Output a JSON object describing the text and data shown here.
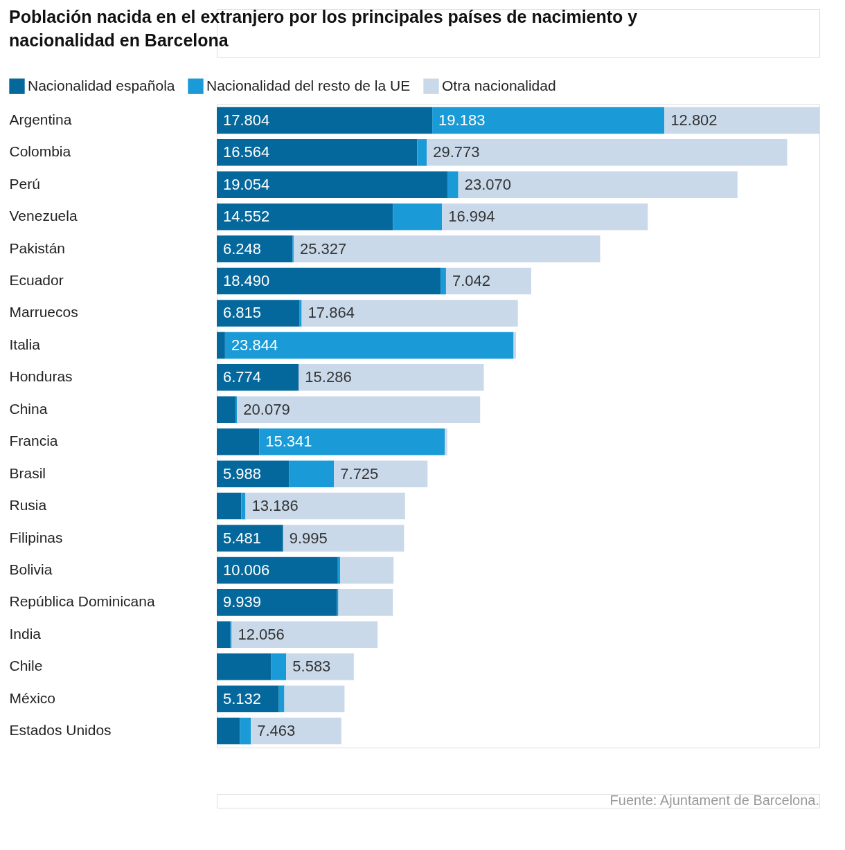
{
  "chart_data": {
    "type": "bar",
    "orientation": "horizontal",
    "stacked": true,
    "title": "Población nacida en el extranjero por los principales países de nacimiento y nacionalidad en Barcelona",
    "categories": [
      "Argentina",
      "Colombia",
      "Perú",
      "Venezuela",
      "Pakistán",
      "Ecuador",
      "Marruecos",
      "Italia",
      "Honduras",
      "China",
      "Francia",
      "Brasil",
      "Rusia",
      "Filipinas",
      "Bolivia",
      "República Dominicana",
      "India",
      "Chile",
      "México",
      "Estados Unidos"
    ],
    "series": [
      {
        "name": "Nacionalidad española",
        "color": "#05689c",
        "values": [
          17804,
          16564,
          19054,
          14552,
          6248,
          18490,
          6815,
          680,
          6774,
          1580,
          3500,
          5988,
          2030,
          5481,
          10006,
          9939,
          1130,
          4500,
          5132,
          1920
        ],
        "value_labels": [
          "17.804",
          "16.564",
          "19.054",
          "14.552",
          "6.248",
          "18.490",
          "6.815",
          null,
          "6.774",
          null,
          null,
          "5.988",
          null,
          "5.481",
          "10.006",
          "9.939",
          null,
          null,
          "5.132",
          null
        ]
      },
      {
        "name": "Nacionalidad del resto de la UE",
        "color": "#1a9ad6",
        "values": [
          19183,
          790,
          900,
          4064,
          100,
          450,
          200,
          23844,
          0,
          100,
          15341,
          3700,
          340,
          0,
          200,
          110,
          100,
          1240,
          450,
          900
        ],
        "value_labels": [
          "19.183",
          null,
          null,
          null,
          null,
          null,
          null,
          "23.844",
          null,
          null,
          "15.341",
          null,
          null,
          null,
          null,
          null,
          null,
          null,
          null,
          null
        ]
      },
      {
        "name": "Otra nacionalidad",
        "color": "#c9d9ea",
        "values": [
          12802,
          29773,
          23070,
          16994,
          25327,
          7042,
          17864,
          200,
          15286,
          20079,
          200,
          7725,
          13186,
          9995,
          4400,
          4500,
          12056,
          5583,
          4970,
          7463
        ],
        "value_labels": [
          "12.802",
          "29.773",
          "23.070",
          "16.994",
          "25.327",
          "7.042",
          "17.864",
          null,
          "15.286",
          "20.079",
          null,
          "7.725",
          "13.186",
          "9.995",
          null,
          null,
          "12.056",
          "5.583",
          null,
          "7.463"
        ]
      }
    ],
    "legend": "top left",
    "tick_labels": "y",
    "grid": false,
    "annotations": [
      "Fuente: Ajuntament de Barcelona."
    ]
  }
}
